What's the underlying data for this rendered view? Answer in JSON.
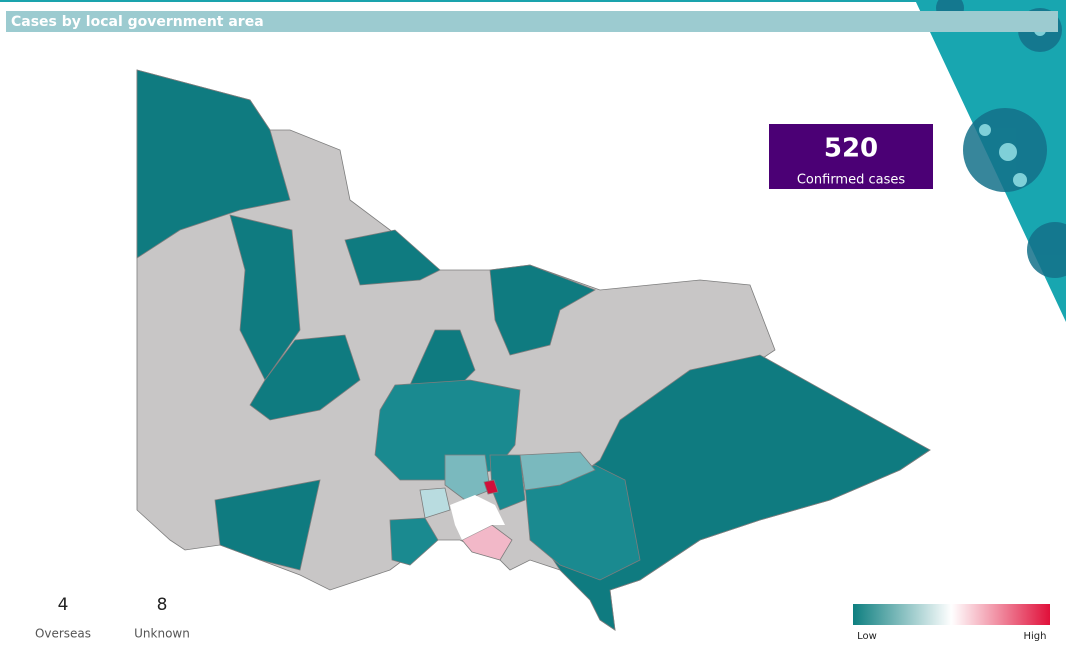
{
  "header": {
    "title": "Cases by local government area"
  },
  "kpi": {
    "value": 520,
    "label": "Confirmed cases"
  },
  "counts": [
    {
      "value": 4,
      "label": "Overseas"
    },
    {
      "value": 8,
      "label": "Unknown"
    }
  ],
  "legend": {
    "low": "Low",
    "high": "High"
  }
}
